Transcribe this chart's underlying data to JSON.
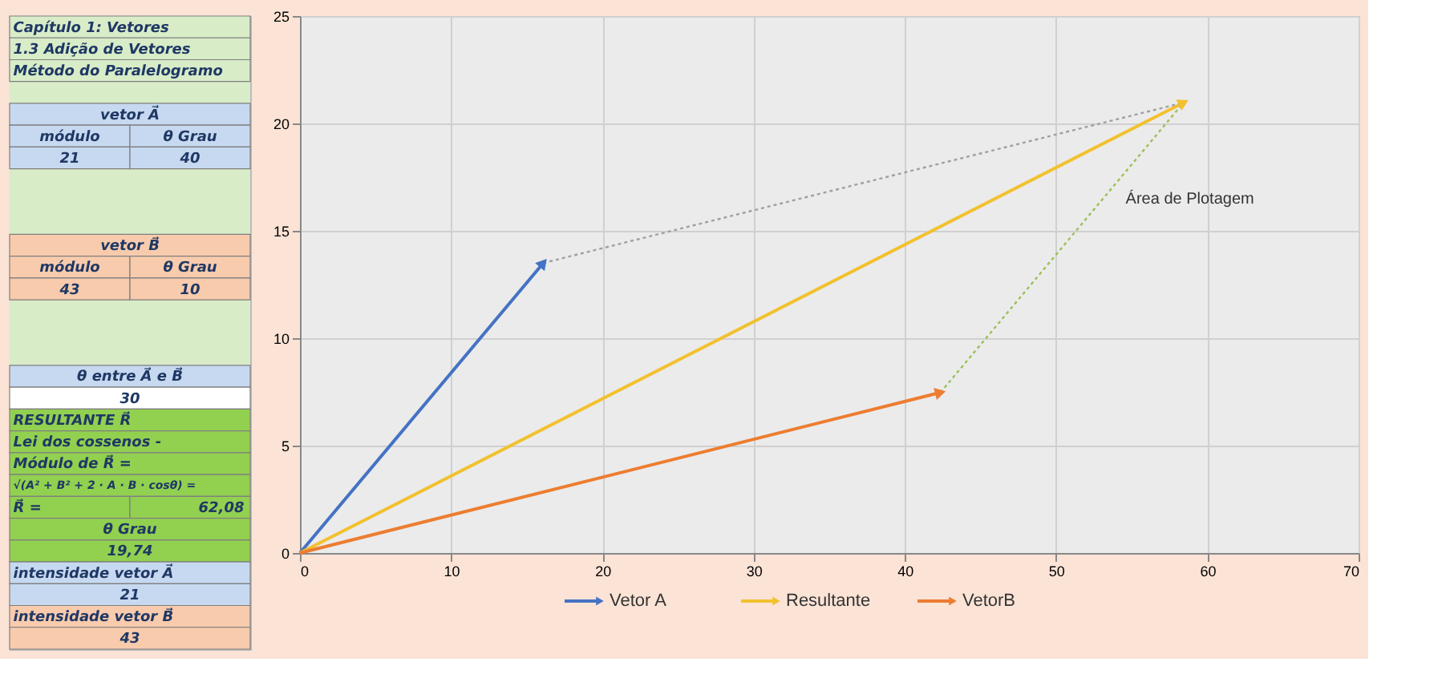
{
  "chart_data": [
    {
      "type": "other",
      "annotations": [
        "Capítulo 1: Vetores",
        "1.3 Adição de Vetores",
        "Método do Paralelogramo",
        "vetor A⃗",
        "módulo",
        "θ Grau",
        "21",
        "40",
        "vetor B⃗",
        "módulo",
        "θ Grau",
        "43",
        "10",
        "θ entre A⃗ e B⃗",
        "30",
        "RESULTANTE   R⃗",
        "Lei dos cossenos -",
        "Módulo de  R⃗ =",
        "√(A² + B² + 2 · A · B · cosθ) =",
        "R⃗ =",
        "62,08",
        "θ Grau",
        "19,74",
        "intensidade vetor  A⃗",
        "21",
        "intensidade vetor  B⃗",
        "43"
      ]
    },
    {
      "type": "line",
      "xlim": [
        0,
        70
      ],
      "ylim": [
        0,
        25
      ],
      "xticks": [
        0,
        10,
        20,
        30,
        40,
        50,
        60,
        70
      ],
      "yticks": [
        0,
        5,
        10,
        15,
        20,
        25
      ],
      "grid": true,
      "legend": "bottom",
      "annotations": [
        "Área de Plotagem"
      ],
      "series": [
        {
          "name": "Vetor A",
          "color": "#4472c4",
          "x": [
            0,
            16.09
          ],
          "values": [
            0,
            13.5
          ],
          "line_style": "solid"
        },
        {
          "name": "Resultante",
          "color": "#f2c12e",
          "x": [
            0,
            58.43
          ],
          "values": [
            0,
            20.97
          ],
          "line_style": "solid"
        },
        {
          "name": "VetorB",
          "color": "#ed7d31",
          "x": [
            0,
            42.35
          ],
          "values": [
            0,
            7.47
          ],
          "line_style": "solid"
        },
        {
          "color": "#a0a0a0",
          "x": [
            16.09,
            58.43
          ],
          "values": [
            13.5,
            20.97
          ],
          "line_style": "dotted"
        },
        {
          "color": "#9cbf5a",
          "x": [
            42.35,
            58.43
          ],
          "values": [
            7.47,
            20.97
          ],
          "line_style": "dotted"
        }
      ]
    }
  ]
}
